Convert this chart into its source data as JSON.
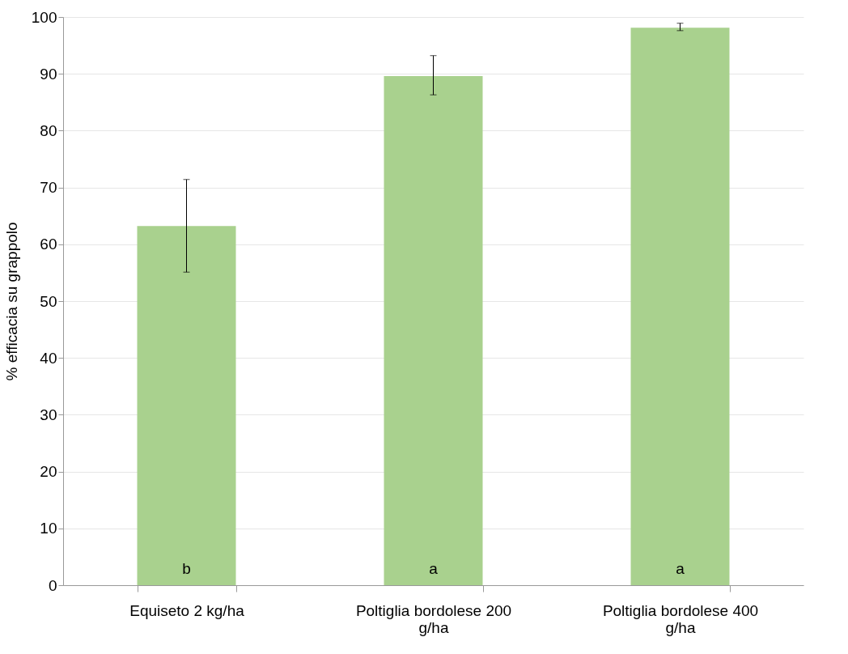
{
  "chart_data": {
    "type": "bar",
    "ylabel": "% efficacia su grappolo",
    "categories": [
      "Equiseto 2 kg/ha",
      "Poltiglia bordolese 200 g/ha",
      "Poltiglia bordolese 400 g/ha"
    ],
    "values": [
      63.2,
      89.6,
      98.1
    ],
    "errors": [
      [
        55.1,
        71.4
      ],
      [
        86.3,
        93.2
      ],
      [
        97.6,
        98.9
      ]
    ],
    "color": "#a9d18e",
    "ylim": [
      0,
      100
    ],
    "yticks": [
      0,
      10,
      20,
      30,
      40,
      50,
      60,
      70,
      80,
      90,
      100
    ],
    "grid": "y",
    "annotations": [
      "b",
      "a",
      "a"
    ]
  }
}
